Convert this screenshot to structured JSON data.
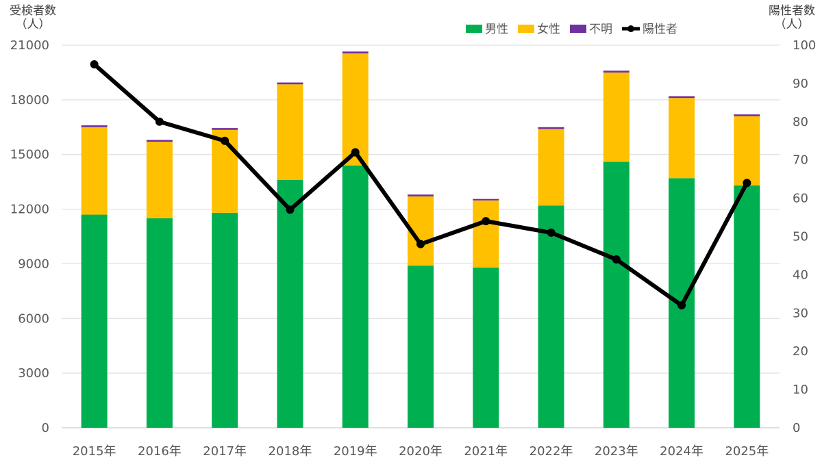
{
  "chart_data": {
    "type": "bar",
    "stacked": true,
    "categories": [
      "2015年",
      "2016年",
      "2017年",
      "2018年",
      "2019年",
      "2020年",
      "2021年",
      "2022年",
      "2023年",
      "2024年",
      "2025年"
    ],
    "series": [
      {
        "name": "男性",
        "kind": "bar",
        "axis": "left",
        "color": "#00b050",
        "values": [
          11700,
          11500,
          11800,
          13600,
          14400,
          8900,
          8800,
          12200,
          14600,
          13700,
          13300
        ]
      },
      {
        "name": "女性",
        "kind": "bar",
        "axis": "left",
        "color": "#ffc000",
        "values": [
          4800,
          4200,
          4550,
          5250,
          6150,
          3800,
          3680,
          4200,
          4900,
          4400,
          3800
        ]
      },
      {
        "name": "不明",
        "kind": "bar",
        "axis": "left",
        "color": "#7030a0",
        "values": [
          100,
          100,
          100,
          100,
          100,
          100,
          80,
          100,
          100,
          100,
          100
        ]
      },
      {
        "name": "陽性者",
        "kind": "line",
        "axis": "right",
        "color": "#000000",
        "values": [
          95,
          80,
          75,
          57,
          72,
          48,
          54,
          51,
          44,
          32,
          64
        ]
      }
    ],
    "ylabel_left": [
      "受検者数",
      "（人）"
    ],
    "ylabel_right": [
      "陽性者数",
      "（人）"
    ],
    "ylim_left": [
      0,
      21000
    ],
    "yticks_left": [
      0,
      3000,
      6000,
      9000,
      12000,
      15000,
      18000,
      21000
    ],
    "ylim_right": [
      0,
      100
    ],
    "yticks_right": [
      0,
      10,
      20,
      30,
      40,
      50,
      60,
      70,
      80,
      90,
      100
    ],
    "grid": true,
    "legend": "top-right"
  }
}
